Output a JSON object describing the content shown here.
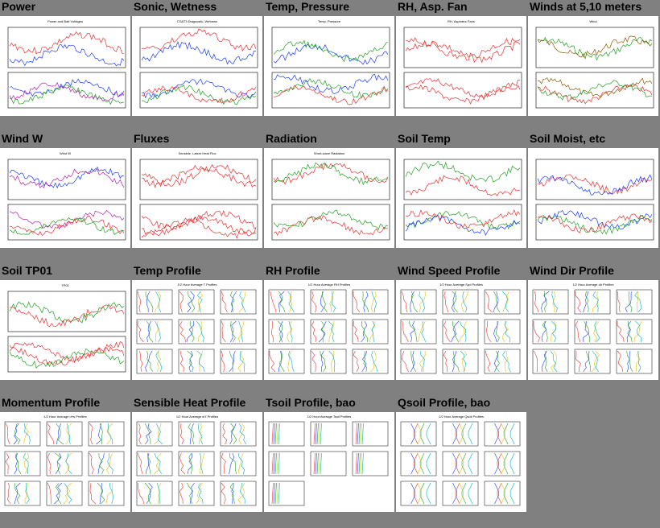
{
  "panels": [
    {
      "title": "Power",
      "kind": "timeseries",
      "subtitle": "Power and Batt Voltages",
      "colors": [
        "#e83030",
        "#1a3cff",
        "#20a020",
        "#b020b0"
      ]
    },
    {
      "title": "Sonic, Wetness",
      "kind": "timeseries",
      "subtitle": "CSAT3 Diagnostic, Wetness",
      "colors": [
        "#e83030",
        "#1a3cff",
        "#20a020"
      ]
    },
    {
      "title": "Temp, Pressure",
      "kind": "timeseries",
      "subtitle": "Temp, Pressure",
      "colors": [
        "#1a3cff",
        "#20a020",
        "#e83030"
      ]
    },
    {
      "title": "RH, Asp. Fan",
      "kind": "timeseries",
      "subtitle": "RH, Aspirator Fans",
      "colors": [
        "#e83030",
        "#e83030"
      ]
    },
    {
      "title": "Winds at 5,10 meters",
      "kind": "timeseries",
      "subtitle": "Wind",
      "colors": [
        "#20a020",
        "#8b5a00",
        "#e83030"
      ]
    },
    {
      "title": "Wind W",
      "kind": "timeseries",
      "subtitle": "Wind W",
      "colors": [
        "#1a3cff",
        "#b020b0",
        "#e83030",
        "#20a020"
      ]
    },
    {
      "title": "Fluxes",
      "kind": "timeseries",
      "subtitle": "Sensible, Latent Heat Flux",
      "colors": [
        "#e83030",
        "#e83030",
        "#e83030"
      ]
    },
    {
      "title": "Radiation",
      "kind": "timeseries",
      "subtitle": "Short-wave Radiation",
      "colors": [
        "#e83030",
        "#20a020"
      ]
    },
    {
      "title": "Soil Temp",
      "kind": "timeseries",
      "subtitle": "",
      "colors": [
        "#e83030",
        "#20a020",
        "#1a3cff"
      ]
    },
    {
      "title": "Soil Moist, etc",
      "kind": "timeseries",
      "subtitle": "",
      "colors": [
        "#e83030",
        "#1a3cff",
        "#20a020"
      ]
    },
    {
      "title": "Soil TP01",
      "kind": "timeseries",
      "subtitle": "TP01",
      "colors": [
        "#20a020",
        "#e83030",
        "#e83030"
      ]
    },
    {
      "title": "Temp Profile",
      "kind": "profile",
      "subtitle": "1/2 Hour Average T Profiles",
      "colors": [
        "#e83030",
        "#1a3cff",
        "#20a020",
        "#e0c000",
        "#00b0c0",
        "#b020b0"
      ]
    },
    {
      "title": "RH Profile",
      "kind": "profile",
      "subtitle": "1/2 Hour Average RH Profiles",
      "colors": [
        "#e83030",
        "#1a3cff",
        "#20a020",
        "#e0c000",
        "#00b0c0",
        "#b020b0"
      ]
    },
    {
      "title": "Wind Speed Profile",
      "kind": "profile",
      "subtitle": "1/2 Hour Average Spd Profiles",
      "colors": [
        "#e83030",
        "#1a3cff",
        "#20a020",
        "#e0c000",
        "#00b0c0",
        "#b020b0"
      ]
    },
    {
      "title": "Wind Dir Profile",
      "kind": "profile",
      "subtitle": "1/2 Hour Average dir Profiles",
      "colors": [
        "#e83030",
        "#1a3cff",
        "#20a020",
        "#e0c000",
        "#00b0c0",
        "#b020b0"
      ]
    },
    {
      "title": "Momentum Profile",
      "kind": "profile",
      "subtitle": "1/2 Hour Average u*w Profiles",
      "colors": [
        "#e83030",
        "#1a3cff",
        "#20a020",
        "#e0c000",
        "#00b0c0",
        "#b020b0"
      ]
    },
    {
      "title": "Sensible Heat Profile",
      "kind": "profile",
      "subtitle": "1/2 Hour Average w't' Profiles",
      "colors": [
        "#e83030",
        "#1a3cff",
        "#20a020",
        "#e0c000",
        "#00b0c0",
        "#b020b0"
      ]
    },
    {
      "title": "Tsoil Profile, bao",
      "kind": "flatprofile",
      "subtitle": "1/2 Hour Average Tsoil Profiles",
      "colors": [
        "#e83030",
        "#1a3cff",
        "#20a020",
        "#e0c000",
        "#00b0c0",
        "#b020b0"
      ]
    },
    {
      "title": "Qsoil Profile, bao",
      "kind": "vprofile",
      "subtitle": "1/2 Hour Average Qsoil Profiles",
      "colors": [
        "#e83030",
        "#1a3cff",
        "#20a020",
        "#e0c000",
        "#00b0c0",
        "#b020b0"
      ]
    }
  ]
}
